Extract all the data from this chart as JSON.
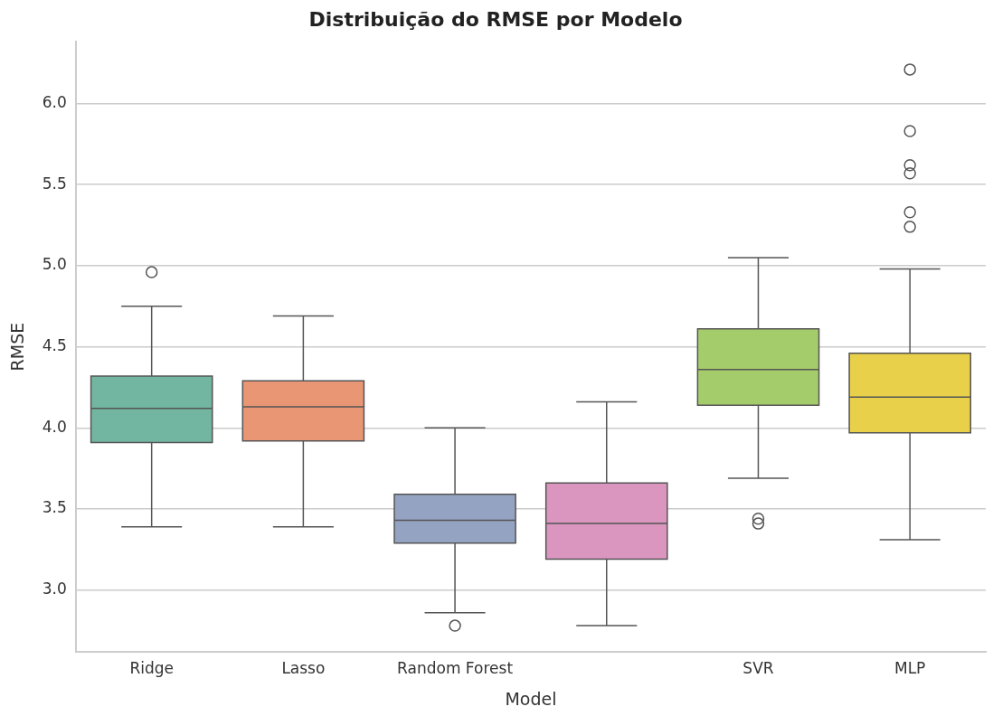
{
  "chart_data": {
    "type": "box",
    "title": "Distribuição do RMSE por Modelo",
    "xlabel": "Model",
    "ylabel": "RMSE",
    "categories": [
      "Ridge",
      "Lasso",
      "Random Forest",
      null,
      "SVR",
      "MLP"
    ],
    "colors": [
      "#72b6a1",
      "#e99675",
      "#95a3c3",
      "#db96c0",
      "#a5cc6b",
      "#e8d04a"
    ],
    "boxes": [
      {
        "low": 3.39,
        "q1": 3.91,
        "median": 4.12,
        "q3": 4.32,
        "high": 4.75,
        "outliers": [
          4.96
        ]
      },
      {
        "low": 3.39,
        "q1": 3.92,
        "median": 4.13,
        "q3": 4.29,
        "high": 4.69
      },
      {
        "low": 2.86,
        "q1": 3.29,
        "median": 3.43,
        "q3": 3.59,
        "high": 4.0,
        "outliers": [
          2.78
        ]
      },
      {
        "low": 2.78,
        "q1": 3.19,
        "median": 3.41,
        "q3": 3.66,
        "high": 4.16
      },
      {
        "low": 3.69,
        "q1": 4.14,
        "median": 4.36,
        "q3": 4.61,
        "high": 5.05,
        "outliers": [
          3.44,
          3.41
        ]
      },
      {
        "low": 3.31,
        "q1": 3.97,
        "median": 4.19,
        "q3": 4.46,
        "high": 4.98,
        "outliers": [
          6.21,
          5.83,
          5.62,
          5.57,
          5.33,
          5.24
        ]
      }
    ],
    "ylim": [
      2.62,
      6.38
    ],
    "yticks": [
      {
        "value": 3,
        "label": "3.0"
      },
      {
        "value": 3.5,
        "label": "3.5"
      },
      {
        "value": 4,
        "label": "4.0"
      },
      {
        "value": 4.5,
        "label": "4.5"
      },
      {
        "value": 5,
        "label": "5.0"
      },
      {
        "value": 5.5,
        "label": "5.5"
      },
      {
        "value": 6,
        "label": "6.0"
      }
    ],
    "grid": "y"
  }
}
